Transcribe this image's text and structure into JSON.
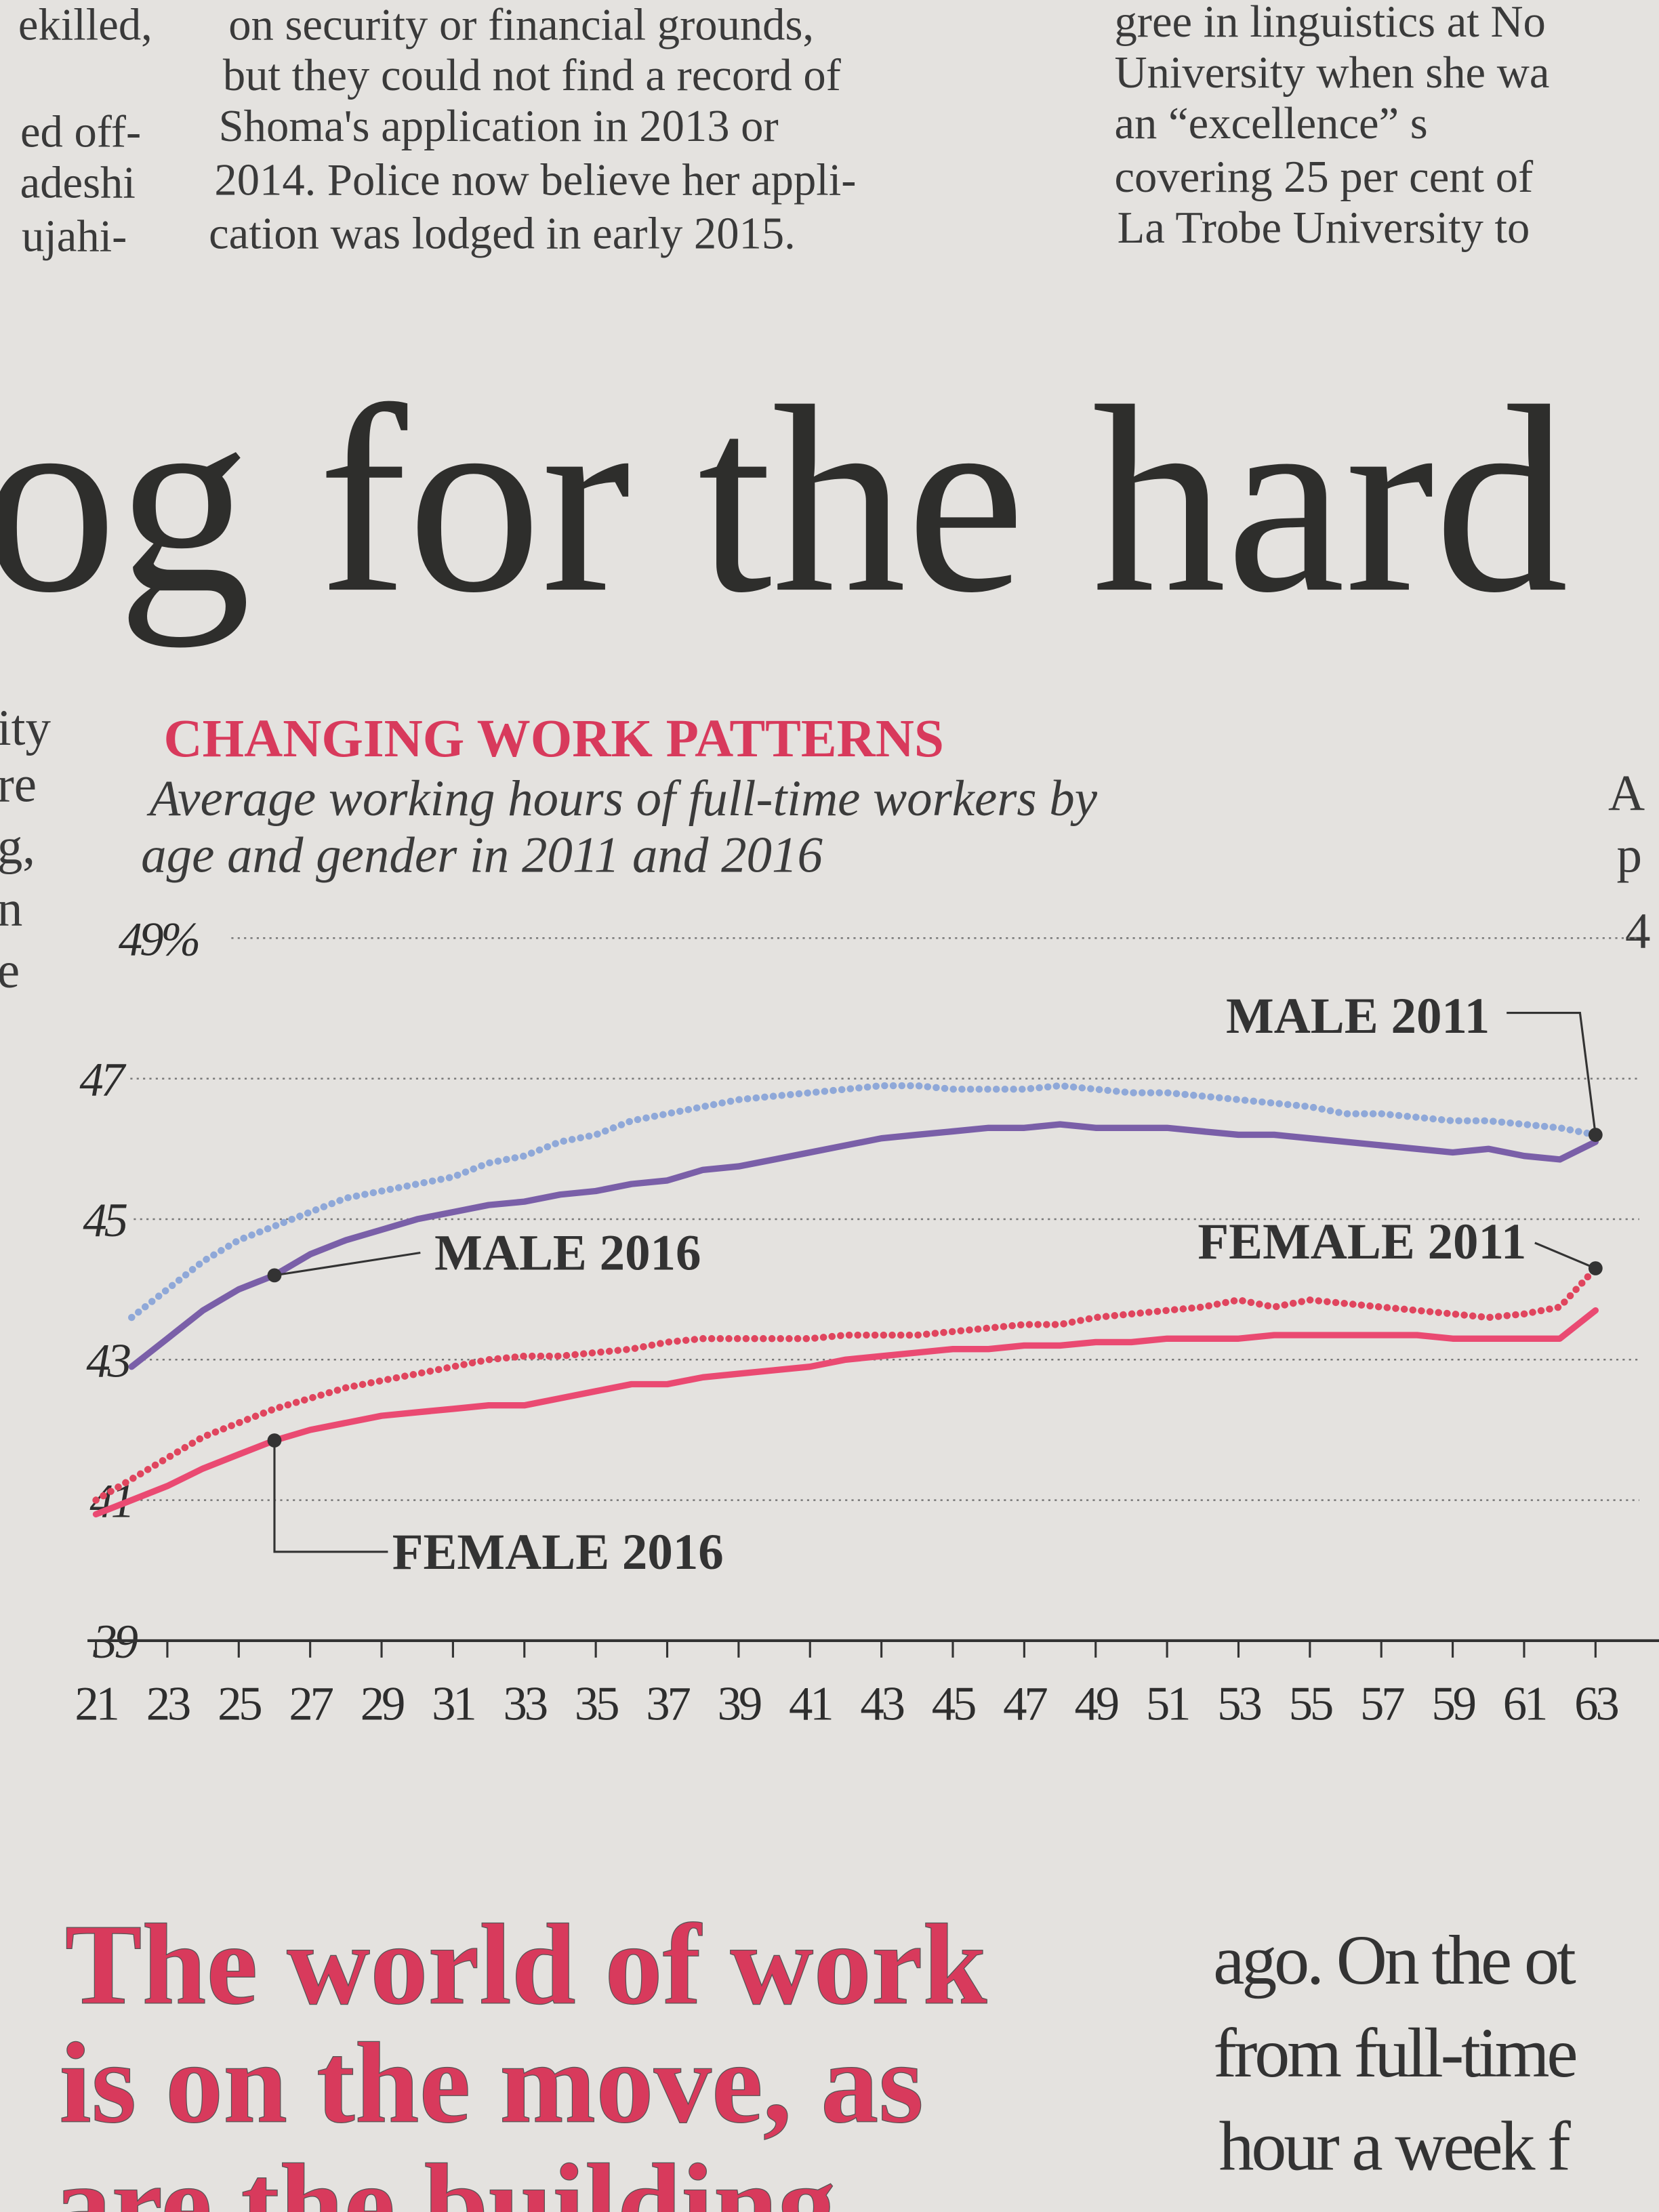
{
  "article": {
    "top_columns": [
      [
        "ekilled,",
        "ed off-",
        "adeshi",
        "ujahi-"
      ],
      [
        "on security or financial grounds,",
        "but they could not find a record of",
        "Shoma's application in 2013 or",
        "2014. Police now believe her appli-",
        "cation was lodged in early 2015."
      ],
      [
        "gree in linguistics at No",
        "University when she wa",
        "an “excellence” s",
        "covering 25 per cent of",
        "La Trobe University to"
      ]
    ],
    "headline": "og for the hard",
    "left_margin": [
      "ity",
      "re",
      "g,",
      "n",
      "e"
    ],
    "right_margin": [
      "A",
      "p",
      "4"
    ],
    "bottom_headline": [
      "The world of work",
      "is on the move, as",
      "are the building"
    ],
    "bottom_right": [
      "ago. On the ot",
      "from full-time",
      "hour a week f"
    ]
  },
  "chart_data": {
    "type": "line",
    "title": "CHANGING WORK PATTERNS",
    "subtitle": [
      "Average working hours of full-time workers by",
      "age and gender in 2011 and 2016"
    ],
    "x": [
      21,
      22,
      23,
      24,
      25,
      26,
      27,
      28,
      29,
      30,
      31,
      32,
      33,
      34,
      35,
      36,
      37,
      38,
      39,
      40,
      41,
      42,
      43,
      44,
      45,
      46,
      47,
      48,
      49,
      50,
      51,
      52,
      53,
      54,
      55,
      56,
      57,
      58,
      59,
      60,
      61,
      62,
      63
    ],
    "xlim": [
      21,
      63
    ],
    "xticks": [
      21,
      23,
      25,
      27,
      29,
      31,
      33,
      35,
      37,
      39,
      41,
      43,
      45,
      47,
      49,
      51,
      53,
      55,
      57,
      59,
      61,
      63
    ],
    "ylim": [
      39,
      49
    ],
    "yticks": [
      39,
      41,
      43,
      45,
      47,
      {
        "value": 49,
        "label": "49%"
      }
    ],
    "grid": true,
    "series": [
      {
        "name": "MALE 2011",
        "color": "#8fa8d8",
        "style": "dotted",
        "values": [
          null,
          43.6,
          44.0,
          44.4,
          44.7,
          44.9,
          45.1,
          45.3,
          45.4,
          45.5,
          45.6,
          45.8,
          45.9,
          46.1,
          46.2,
          46.4,
          46.5,
          46.6,
          46.7,
          46.75,
          46.8,
          46.85,
          46.9,
          46.9,
          46.85,
          46.85,
          46.85,
          46.9,
          46.85,
          46.8,
          46.8,
          46.75,
          46.7,
          46.65,
          46.6,
          46.5,
          46.5,
          46.45,
          46.4,
          46.4,
          46.35,
          46.3,
          46.2
        ]
      },
      {
        "name": "MALE 2016",
        "color": "#7a5fa8",
        "style": "solid",
        "values": [
          null,
          42.9,
          43.3,
          43.7,
          44.0,
          44.2,
          44.5,
          44.7,
          44.85,
          45.0,
          45.1,
          45.2,
          45.25,
          45.35,
          45.4,
          45.5,
          45.55,
          45.7,
          45.75,
          45.85,
          45.95,
          46.05,
          46.15,
          46.2,
          46.25,
          46.3,
          46.3,
          46.35,
          46.3,
          46.3,
          46.3,
          46.25,
          46.2,
          46.2,
          46.15,
          46.1,
          46.05,
          46.0,
          45.95,
          46.0,
          45.9,
          45.85,
          46.1
        ]
      },
      {
        "name": "FEMALE 2011",
        "color": "#e0455e",
        "style": "dotted",
        "values": [
          41.0,
          41.3,
          41.6,
          41.9,
          42.1,
          42.3,
          42.45,
          42.6,
          42.7,
          42.8,
          42.9,
          43.0,
          43.05,
          43.05,
          43.1,
          43.15,
          43.25,
          43.3,
          43.3,
          43.3,
          43.3,
          43.35,
          43.35,
          43.35,
          43.4,
          43.45,
          43.5,
          43.5,
          43.6,
          43.65,
          43.7,
          43.75,
          43.85,
          43.75,
          43.85,
          43.8,
          43.75,
          43.7,
          43.65,
          43.6,
          43.65,
          43.75,
          44.3
        ]
      },
      {
        "name": "FEMALE 2016",
        "color": "#ea4a72",
        "style": "solid",
        "values": [
          40.8,
          41.0,
          41.2,
          41.45,
          41.65,
          41.85,
          42.0,
          42.1,
          42.2,
          42.25,
          42.3,
          42.35,
          42.35,
          42.45,
          42.55,
          42.65,
          42.65,
          42.75,
          42.8,
          42.85,
          42.9,
          43.0,
          43.05,
          43.1,
          43.15,
          43.15,
          43.2,
          43.2,
          43.25,
          43.25,
          43.3,
          43.3,
          43.3,
          43.35,
          43.35,
          43.35,
          43.35,
          43.35,
          43.3,
          43.3,
          43.3,
          43.3,
          43.7
        ]
      }
    ]
  }
}
